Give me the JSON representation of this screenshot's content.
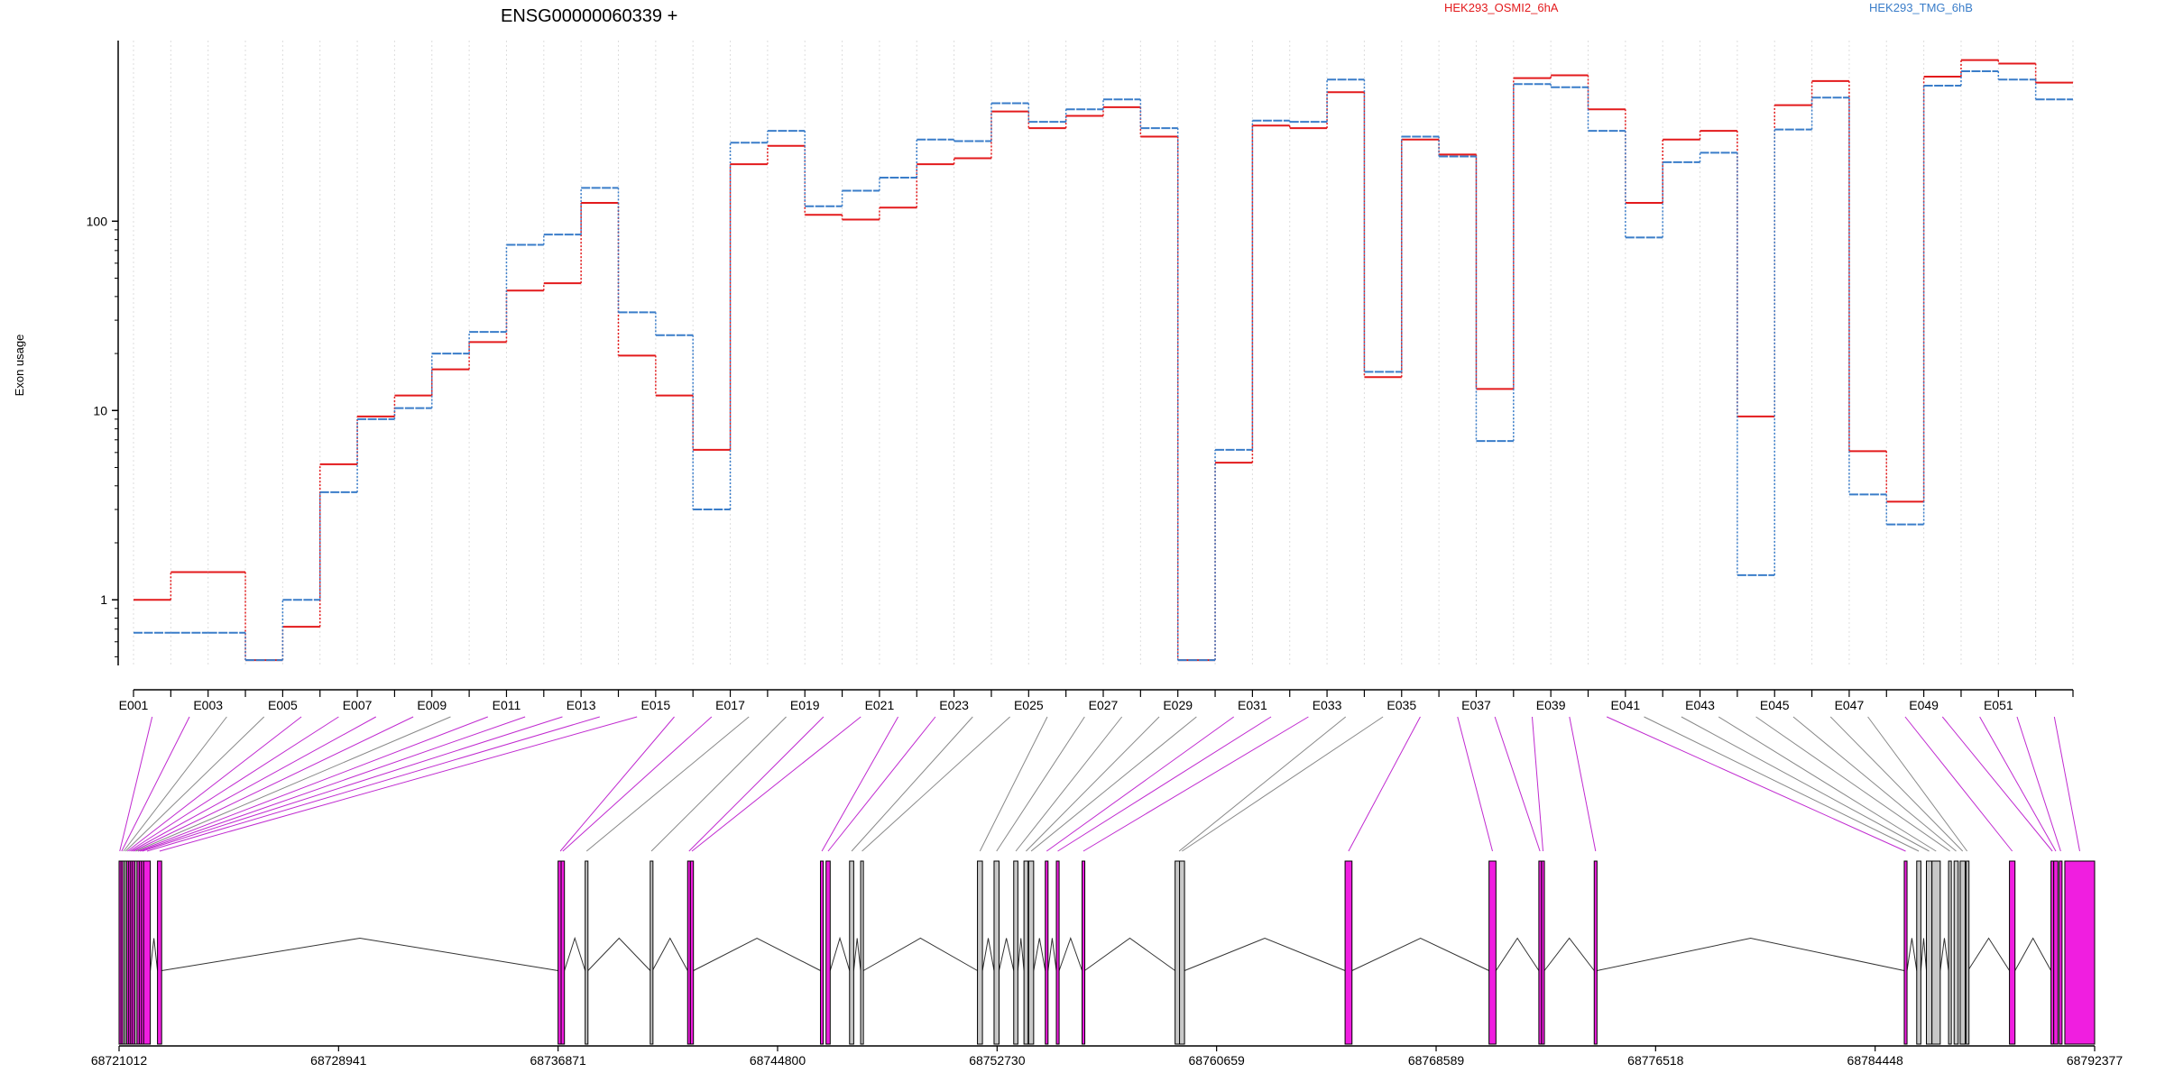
{
  "title": "ENSG00000060339 +",
  "ylabel": "Exon usage",
  "legend": [
    {
      "label": "HEK293_OSMI2_6hA",
      "color": "#e31a1c",
      "dash": "solid"
    },
    {
      "label": "HEK293_TMG_6hB",
      "color": "#3a7dc9",
      "dash": "dashed"
    }
  ],
  "colors": {
    "featured_exon": "#f01ee0",
    "plain_exon": "#c8c8c8"
  },
  "chart_data": {
    "type": "line",
    "y_scale": "log",
    "ylim": [
      0.45,
      900
    ],
    "y_ticks": [
      1,
      10,
      100
    ],
    "y_tick_labels": [
      "1",
      "10",
      "100"
    ],
    "grid": "vertical dotted lines per exon",
    "legend_position": "top-right",
    "categories": [
      "E001",
      "E002",
      "E003",
      "E004",
      "E005",
      "E006",
      "E007",
      "E008",
      "E009",
      "E010",
      "E011",
      "E012",
      "E013",
      "E014",
      "E015",
      "E016",
      "E017",
      "E018",
      "E019",
      "E020",
      "E021",
      "E022",
      "E023",
      "E024",
      "E025",
      "E026",
      "E027",
      "E028",
      "E029",
      "E030",
      "E031",
      "E032",
      "E033",
      "E034",
      "E035",
      "E036",
      "E037",
      "E038",
      "E039",
      "E040",
      "E041",
      "E042",
      "E043",
      "E044",
      "E045",
      "E046",
      "E047",
      "E048",
      "E049",
      "E050",
      "E051",
      "E052"
    ],
    "x_tick_labels": [
      "E001",
      "E003",
      "E005",
      "E007",
      "E009",
      "E011",
      "E013",
      "E015",
      "E017",
      "E019",
      "E021",
      "E023",
      "E025",
      "E027",
      "E029",
      "E031",
      "E033",
      "E035",
      "E037",
      "E039",
      "E041",
      "E043",
      "E045",
      "E047",
      "E049",
      "E051"
    ],
    "series": [
      {
        "name": "HEK293_OSMI2_6hA",
        "color": "#e31a1c",
        "values": [
          1.0,
          1.4,
          1.4,
          0.48,
          0.72,
          5.2,
          9.3,
          12,
          16.5,
          23,
          43,
          47,
          125,
          19.5,
          12,
          6.2,
          200,
          250,
          108,
          102,
          118,
          200,
          215,
          380,
          310,
          360,
          400,
          280,
          0.48,
          5.3,
          320,
          310,
          480,
          15,
          270,
          225,
          13,
          570,
          590,
          390,
          125,
          270,
          300,
          9.3,
          410,
          550,
          6.1,
          3.3,
          580,
          710,
          680,
          540
        ]
      },
      {
        "name": "HEK293_TMG_6hB",
        "color": "#3a7dc9",
        "values": [
          0.67,
          0.67,
          0.67,
          0.48,
          1.0,
          3.7,
          9.0,
          10.3,
          20,
          26,
          75,
          85,
          150,
          33,
          25,
          3.0,
          260,
          300,
          120,
          145,
          170,
          270,
          265,
          420,
          335,
          390,
          440,
          310,
          0.48,
          6.2,
          340,
          335,
          560,
          16,
          280,
          220,
          6.9,
          530,
          510,
          300,
          82,
          205,
          230,
          1.35,
          305,
          450,
          3.6,
          2.5,
          520,
          620,
          560,
          440
        ]
      }
    ],
    "gene_model": {
      "coordinates_shown": [
        "68721012",
        "68728941",
        "68736871",
        "68744800",
        "68752730",
        "68760659",
        "68768589",
        "68776518",
        "68784448",
        "68792377"
      ],
      "exon_starts": [
        68721012,
        68721080,
        68721150,
        68721220,
        68721290,
        68721360,
        68721430,
        68721500,
        68721580,
        68721660,
        68721740,
        68721820,
        68721900,
        68722400,
        68736871,
        68736980,
        68737850,
        68740200,
        68741550,
        68741650,
        68746350,
        68746550,
        68747400,
        68747800,
        68752020,
        68752620,
        68753330,
        68753700,
        68753870,
        68754470,
        68754870,
        68755800,
        68759160,
        68759320,
        68765300,
        68770500,
        68772300,
        68772400,
        68774300,
        68785500,
        68785950,
        68786300,
        68786500,
        68787100,
        68787300,
        68787520,
        68787740,
        68789300,
        68790800,
        68790900,
        68791100,
        68791300
      ],
      "exon_ends": [
        68721060,
        68721130,
        68721200,
        68721270,
        68721340,
        68721410,
        68721480,
        68721560,
        68721640,
        68721720,
        68721800,
        68721880,
        68722140,
        68722550,
        68737030,
        68737100,
        68737950,
        68740280,
        68741650,
        68741760,
        68746450,
        68746700,
        68747550,
        68747900,
        68752200,
        68752800,
        68753480,
        68753850,
        68754050,
        68754570,
        68754970,
        68755890,
        68759450,
        68759500,
        68765550,
        68770750,
        68772380,
        68772500,
        68774400,
        68785600,
        68786100,
        68786500,
        68786800,
        68787200,
        68787450,
        68787700,
        68787800,
        68789500,
        68790900,
        68791050,
        68791200,
        68792377
      ],
      "exon_featured": [
        true,
        true,
        false,
        false,
        true,
        true,
        true,
        true,
        false,
        true,
        true,
        true,
        true,
        true,
        true,
        true,
        false,
        false,
        true,
        true,
        true,
        true,
        false,
        false,
        false,
        false,
        false,
        false,
        false,
        true,
        true,
        true,
        false,
        false,
        true,
        true,
        true,
        true,
        true,
        true,
        false,
        false,
        false,
        false,
        false,
        false,
        false,
        true,
        true,
        true,
        true,
        true
      ]
    }
  }
}
